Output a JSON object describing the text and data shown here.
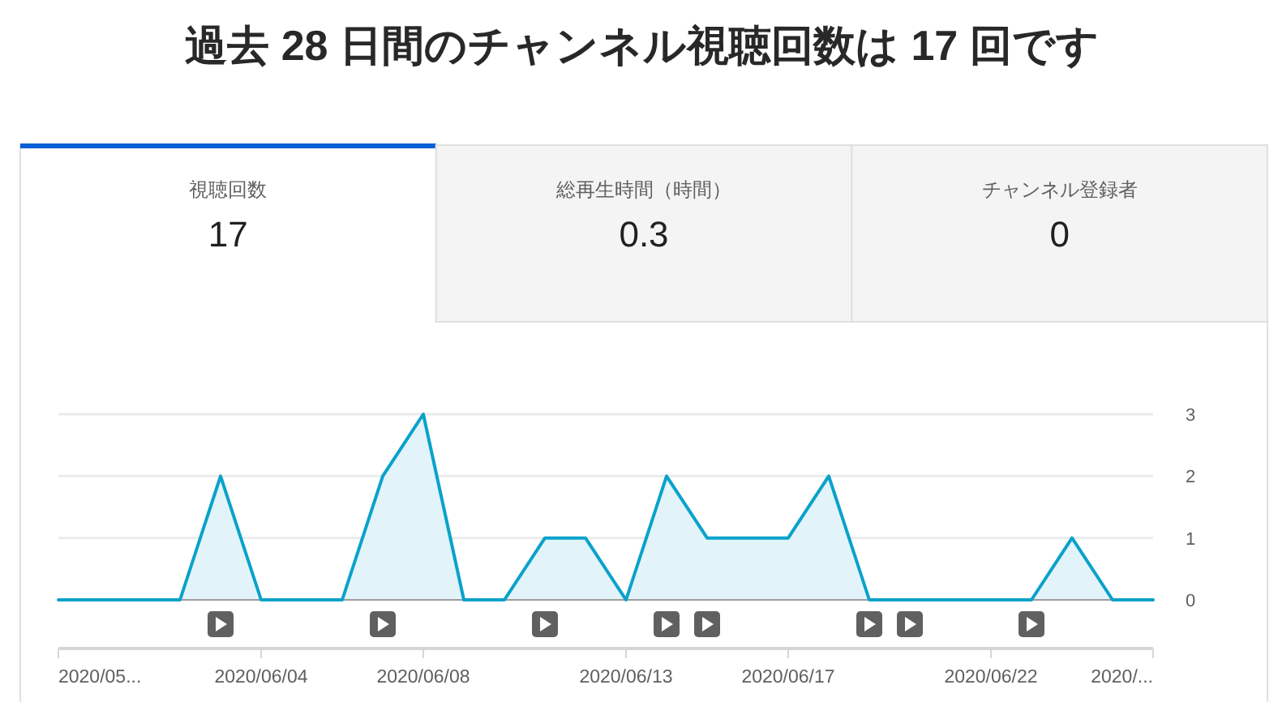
{
  "chart_data": [
    {
      "type": "other",
      "title": "過去 28 日間のチャンネル視聴回数は 17 回です",
      "categories": [
        "視聴回数",
        "総再生時間（時間）",
        "チャンネル登録者"
      ],
      "values": [
        17,
        0.3,
        0
      ],
      "data_labels": true
    },
    {
      "type": "area",
      "x": [
        "2020-05-30",
        "2020-05-31",
        "2020-06-01",
        "2020-06-02",
        "2020-06-03",
        "2020-06-04",
        "2020-06-05",
        "2020-06-06",
        "2020-06-07",
        "2020-06-08",
        "2020-06-09",
        "2020-06-10",
        "2020-06-11",
        "2020-06-12",
        "2020-06-13",
        "2020-06-14",
        "2020-06-15",
        "2020-06-16",
        "2020-06-17",
        "2020-06-18",
        "2020-06-19",
        "2020-06-20",
        "2020-06-21",
        "2020-06-22",
        "2020-06-23",
        "2020-06-24",
        "2020-06-25",
        "2020-06-26"
      ],
      "values": [
        0,
        0,
        0,
        0,
        2,
        0,
        0,
        0,
        2,
        3,
        0,
        0,
        1,
        1,
        0,
        2,
        1,
        1,
        1,
        2,
        0,
        0,
        0,
        0,
        0,
        1,
        0,
        0
      ],
      "color": "#0aa2cb",
      "xlim": [
        "2020-05-30",
        "2020-06-26"
      ],
      "xticks": [
        {
          "value": "2020-05-30",
          "label": "2020/05..."
        },
        {
          "value": "2020-06-04",
          "label": "2020/06/04"
        },
        {
          "value": "2020-06-08",
          "label": "2020/06/08"
        },
        {
          "value": "2020-06-13",
          "label": "2020/06/13"
        },
        {
          "value": "2020-06-17",
          "label": "2020/06/17"
        },
        {
          "value": "2020-06-22",
          "label": "2020/06/22"
        },
        {
          "value": "2020-06-26",
          "label": "2020/..."
        }
      ],
      "ylim": [
        0,
        3
      ],
      "yticks": [
        0,
        1,
        2,
        3
      ],
      "grid": "y"
    }
  ]
}
